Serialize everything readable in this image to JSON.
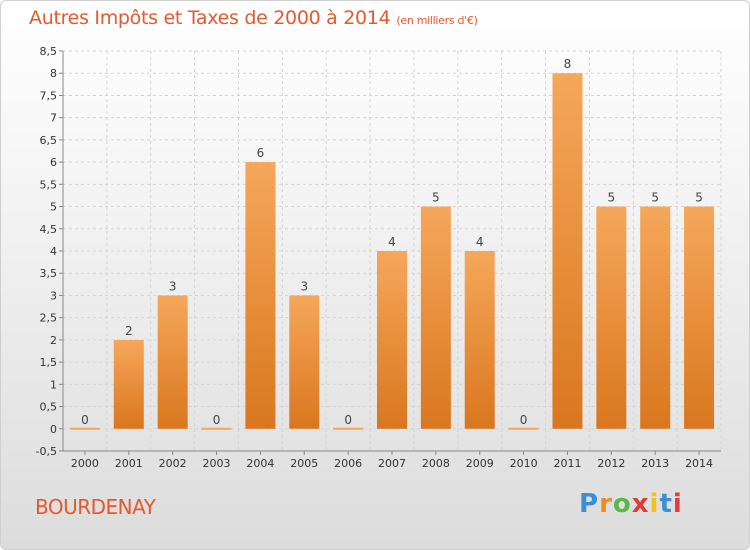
{
  "header": {
    "title": "Autres Impôts et Taxes de 2000 à 2014",
    "unit": "(en milliers d'€)"
  },
  "commune": "BOURDENAY",
  "logo": {
    "text": "Proxiti",
    "letters": [
      "P",
      "r",
      "o",
      "x",
      "i",
      "t",
      "i"
    ]
  },
  "colors": {
    "accent": "#e35a2e",
    "bar_light": "#f6a75a",
    "bar_dark": "#d9771f"
  },
  "chart_data": {
    "type": "bar",
    "title": "Autres Impôts et Taxes de 2000 à 2014",
    "subtitle": "(en milliers d'€)",
    "categories": [
      "2000",
      "2001",
      "2002",
      "2003",
      "2004",
      "2005",
      "2006",
      "2007",
      "2008",
      "2009",
      "2010",
      "2011",
      "2012",
      "2013",
      "2014"
    ],
    "values": [
      0,
      2,
      3,
      0,
      6,
      3,
      0,
      4,
      5,
      4,
      0,
      8,
      5,
      5,
      5
    ],
    "value_labels": [
      "0",
      "2",
      "3",
      "0",
      "6",
      "3",
      "0",
      "4",
      "5",
      "4",
      "0",
      "8",
      "5",
      "5",
      "5"
    ],
    "ylim": [
      -0.5,
      8.5
    ],
    "yticks": [
      -0.5,
      0,
      0.5,
      1,
      1.5,
      2,
      2.5,
      3,
      3.5,
      4,
      4.5,
      5,
      5.5,
      6,
      6.5,
      7,
      7.5,
      8,
      8.5
    ],
    "ytick_labels": [
      "-0,5",
      "0",
      "0,5",
      "1",
      "1,5",
      "2",
      "2,5",
      "3",
      "3,5",
      "4",
      "4,5",
      "5",
      "5,5",
      "6",
      "6,5",
      "7",
      "7,5",
      "8",
      "8,5"
    ],
    "grid": true,
    "legend": "none"
  }
}
